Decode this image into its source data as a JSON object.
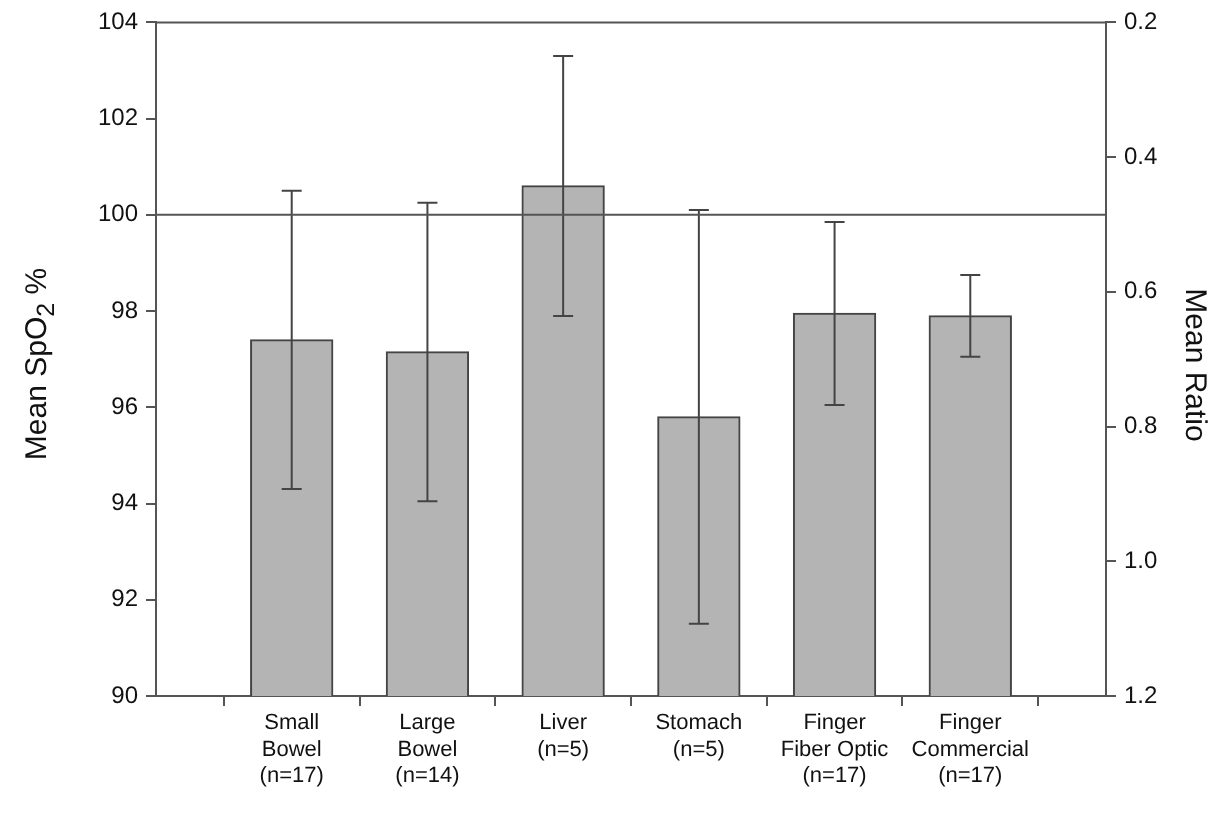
{
  "chart_data": {
    "type": "bar",
    "categories": [
      "Small\nBowel\n(n=17)",
      "Large\nBowel\n(n=14)",
      "Liver\n(n=5)",
      "Stomach\n(n=5)",
      "Finger\nFiber Optic\n(n=17)",
      "Finger\nCommercial\n(n=17)"
    ],
    "values": [
      97.4,
      97.15,
      100.6,
      95.8,
      97.95,
      97.9
    ],
    "errors": [
      3.1,
      3.1,
      2.7,
      4.3,
      1.9,
      0.85
    ],
    "color": "#b4b4b4",
    "ylabel": "Mean SpO$_{2}$ %",
    "y2label": "Mean Ratio",
    "ylim": [
      90,
      104
    ],
    "yticks": [
      90,
      92,
      94,
      96,
      98,
      100,
      102,
      104
    ],
    "y2lim": [
      1.2,
      0.2
    ],
    "y2ticks": [
      {
        "value": 1.2,
        "label": "1.2"
      },
      {
        "value": 1.0,
        "label": "1.0"
      },
      {
        "value": 0.8,
        "label": "0.8"
      },
      {
        "value": 0.6,
        "label": "0.6"
      },
      {
        "value": 0.4,
        "label": "0.4"
      },
      {
        "value": 0.2,
        "label": "0.2"
      }
    ],
    "ref_lines": [
      {
        "axis": "y",
        "value": 100,
        "color": "#555555"
      }
    ],
    "grid": false,
    "legend": false
  }
}
